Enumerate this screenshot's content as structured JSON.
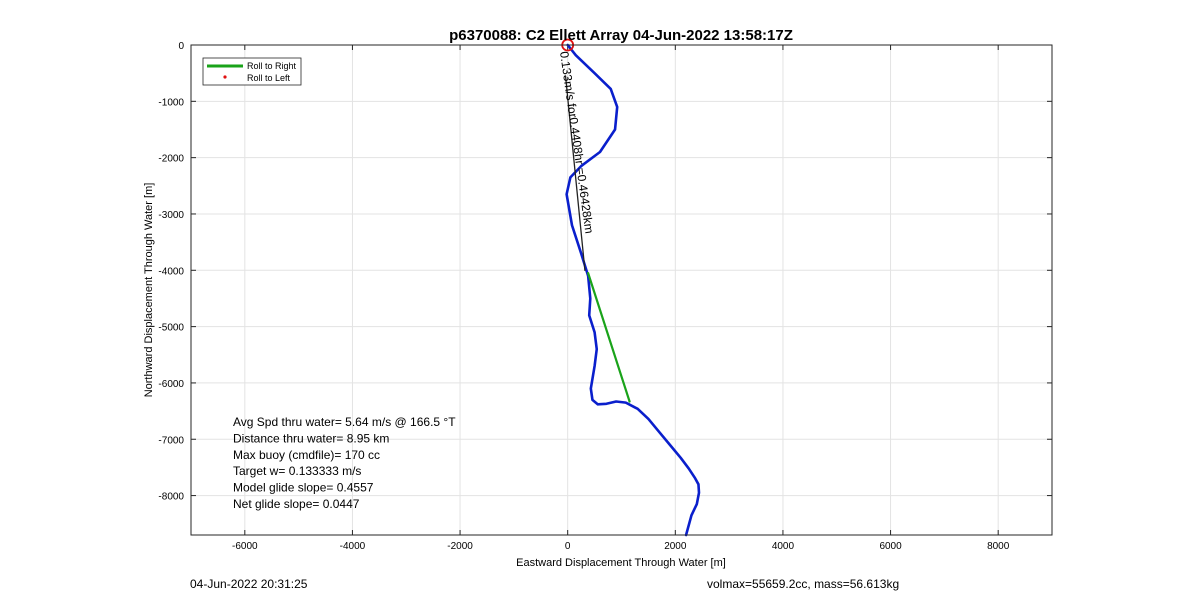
{
  "chart_data": {
    "type": "line",
    "title": "p6370088: C2 Ellett Array 04-Jun-2022 13:58:17Z",
    "xlabel": "Eastward Displacement Through Water [m]",
    "ylabel": "Northward Displacement Through Water [m]",
    "xlim": [
      -7000,
      9000
    ],
    "ylim": [
      -8700,
      0
    ],
    "xticks": [
      -6000,
      -4000,
      -2000,
      0,
      2000,
      4000,
      6000,
      8000
    ],
    "yticks": [
      0,
      -1000,
      -2000,
      -3000,
      -4000,
      -5000,
      -6000,
      -7000,
      -8000
    ],
    "grid": true,
    "legend": {
      "placement": "top-left",
      "entries": [
        {
          "label": "Roll to Right",
          "color": "#1aa31a",
          "style": "line"
        },
        {
          "label": "Roll to Left",
          "color": "#e01010",
          "style": "dot"
        }
      ]
    },
    "series": [
      {
        "color": "#0a1fcc",
        "x": [
          0,
          150,
          500,
          800,
          920,
          880,
          600,
          250,
          50,
          -20,
          80,
          250,
          380,
          420,
          400,
          500,
          540,
          500,
          430,
          460,
          560,
          720,
          900,
          1080,
          1300,
          1500,
          1700,
          1900,
          2100,
          2250,
          2360,
          2430,
          2440,
          2400,
          2300,
          2200
        ],
        "y": [
          0,
          -180,
          -500,
          -780,
          -1100,
          -1500,
          -1900,
          -2150,
          -2350,
          -2650,
          -3200,
          -3700,
          -4100,
          -4500,
          -4800,
          -5100,
          -5400,
          -5700,
          -6100,
          -6300,
          -6380,
          -6370,
          -6330,
          -6350,
          -6460,
          -6640,
          -6870,
          -7100,
          -7330,
          -7520,
          -7680,
          -7800,
          -7950,
          -8150,
          -8350,
          -8700
        ]
      },
      {
        "color": "#1aa31a",
        "x": [
          380,
          1150
        ],
        "y": [
          -4050,
          -6330
        ]
      },
      {
        "color": "#222222",
        "x": [
          -40,
          320
        ],
        "y": [
          -550,
          -4000
        ]
      }
    ],
    "start_marker": {
      "x": 0,
      "y": 0,
      "color": "#e01010"
    },
    "annotations": {
      "rotated_label": "0.133m/s for0.4408hr =0.46428km",
      "stats": [
        "Avg Spd thru water=  5.64 m/s @ 166.5 °T",
        "Distance thru water=  8.95 km",
        "Max buoy (cmdfile)= 170 cc",
        "Target w= 0.133333 m/s",
        "Model glide slope= 0.4557",
        "Net glide slope= 0.0447"
      ]
    }
  },
  "footer": {
    "left": "04-Jun-2022 20:31:25",
    "right": "volmax=55659.2cc, mass=56.613kg"
  }
}
